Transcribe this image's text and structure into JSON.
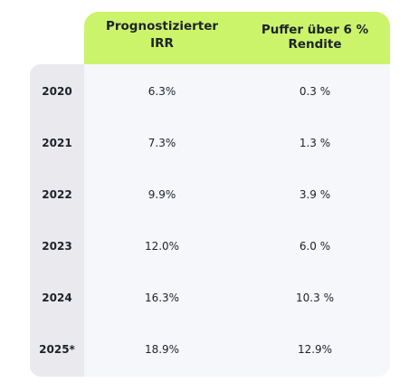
{
  "header": {
    "irr_line1": "Prognostizierter",
    "irr_line2": "IRR",
    "buffer_line1": "Puffer über 6 %",
    "buffer_line2": "Rendite"
  },
  "rows": [
    {
      "year": "2020",
      "irr": "6.3%",
      "buffer": "0.3 %"
    },
    {
      "year": "2021",
      "irr": "7.3%",
      "buffer": "1.3 %"
    },
    {
      "year": "2022",
      "irr": "9.9%",
      "buffer": "3.9 %"
    },
    {
      "year": "2023",
      "irr": "12.0%",
      "buffer": "6.0 %"
    },
    {
      "year": "2024",
      "irr": "16.3%",
      "buffer": "10.3 %"
    },
    {
      "year": "2025*",
      "irr": "18.9%",
      "buffer": "12.9%"
    }
  ],
  "colors": {
    "header_bg": "#ccf46a",
    "year_col_bg": "#e9e9ee",
    "body_bg": "#f6f7fb"
  }
}
